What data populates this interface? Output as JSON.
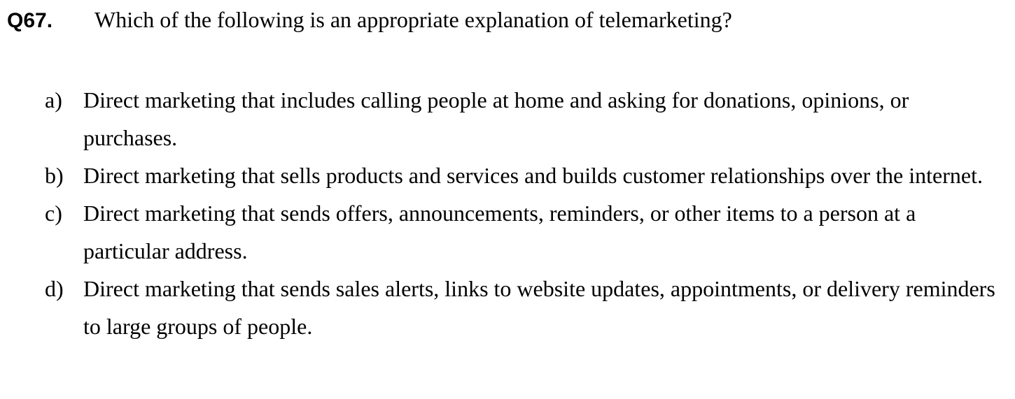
{
  "question": {
    "number": "Q67.",
    "text": "Which of the following is an appropriate explanation of telemarketing?"
  },
  "options": [
    {
      "letter": "a)",
      "text": "Direct marketing that includes calling people at home and asking for donations, opinions, or purchases."
    },
    {
      "letter": "b)",
      "text": "Direct marketing that sells products and services and builds customer relationships over the internet."
    },
    {
      "letter": "c)",
      "text": "Direct marketing that sends offers, announcements, reminders, or other items to a person at a particular address."
    },
    {
      "letter": "d)",
      "text": "Direct marketing that sends sales alerts, links to website updates, appointments, or delivery reminders to large groups of people."
    }
  ]
}
